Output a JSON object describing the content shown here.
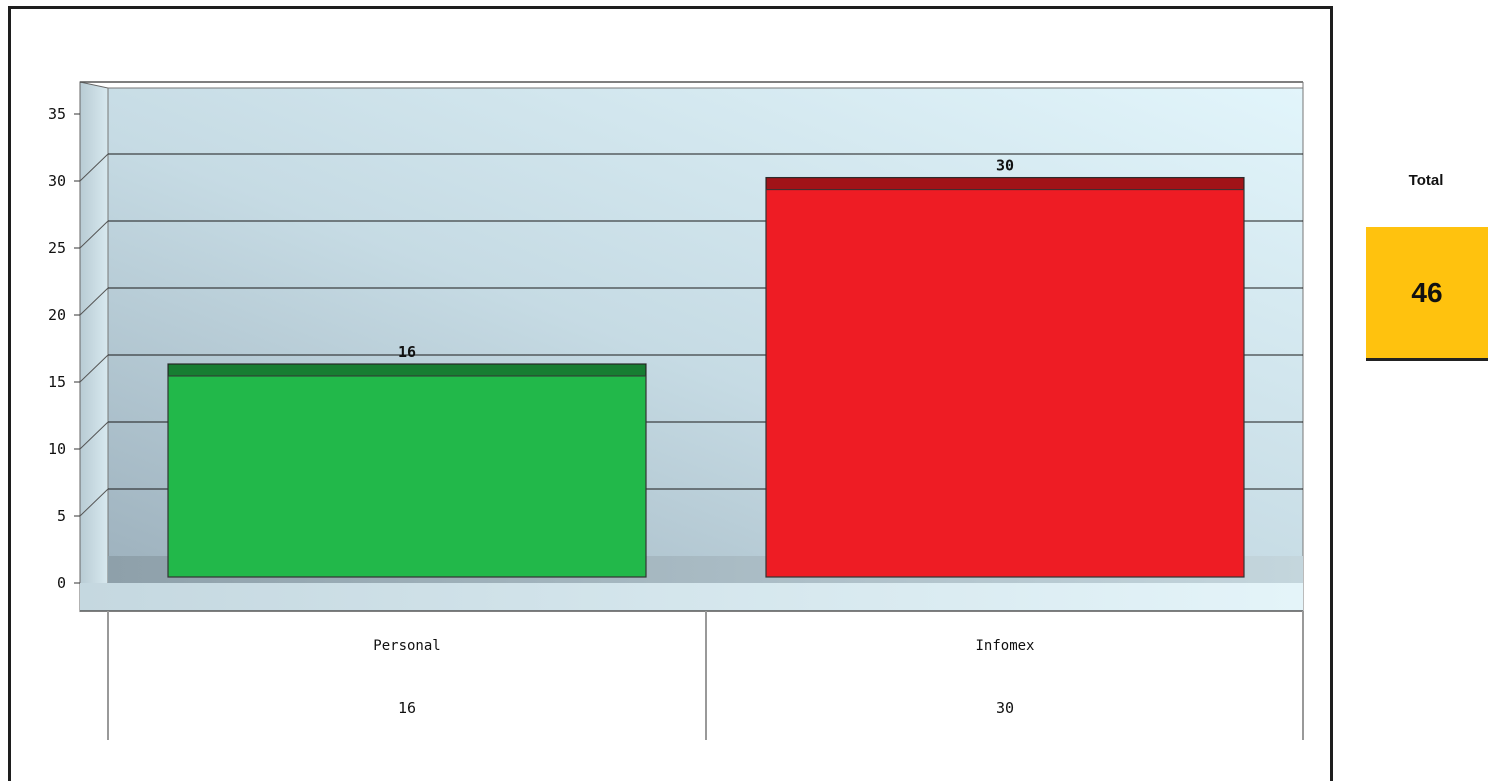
{
  "chart_data": {
    "type": "bar",
    "categories": [
      "Personal",
      "Infomex"
    ],
    "values": [
      16,
      30
    ],
    "data_labels": [
      "16",
      "30"
    ],
    "table_values": [
      "16",
      "30"
    ],
    "bar_colors": [
      "#22b84a",
      "#ee1c24"
    ],
    "yticks": [
      "0",
      "5",
      "10",
      "15",
      "20",
      "25",
      "30",
      "35"
    ],
    "ylim": [
      0,
      35
    ],
    "grid": true
  },
  "summary": {
    "label": "Total",
    "value": "46",
    "color": "#ffc20e"
  }
}
